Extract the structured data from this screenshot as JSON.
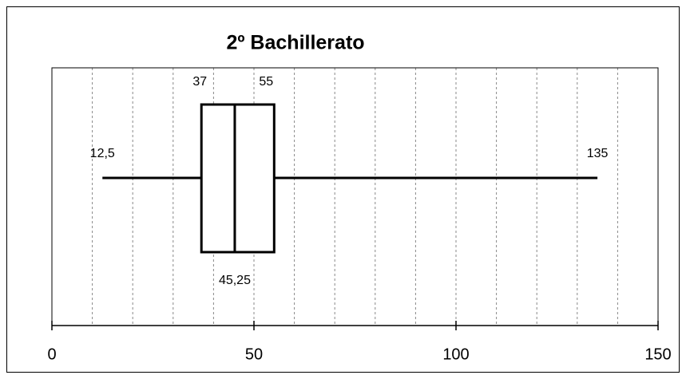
{
  "chart_data": {
    "type": "box",
    "title": "2º Bachillerato",
    "stats": {
      "min": 12.5,
      "q1": 37,
      "median": 45.25,
      "q3": 55,
      "max": 135
    },
    "value_labels": {
      "min": "12,5",
      "median": "45,25"
    },
    "xlim": [
      0,
      150
    ],
    "xticks": [
      0,
      50,
      100,
      150
    ],
    "minor_xticks": [
      10,
      20,
      30,
      40,
      50,
      60,
      70,
      80,
      90,
      100,
      110,
      120,
      130,
      140
    ],
    "grid": true,
    "color": "#000000"
  }
}
